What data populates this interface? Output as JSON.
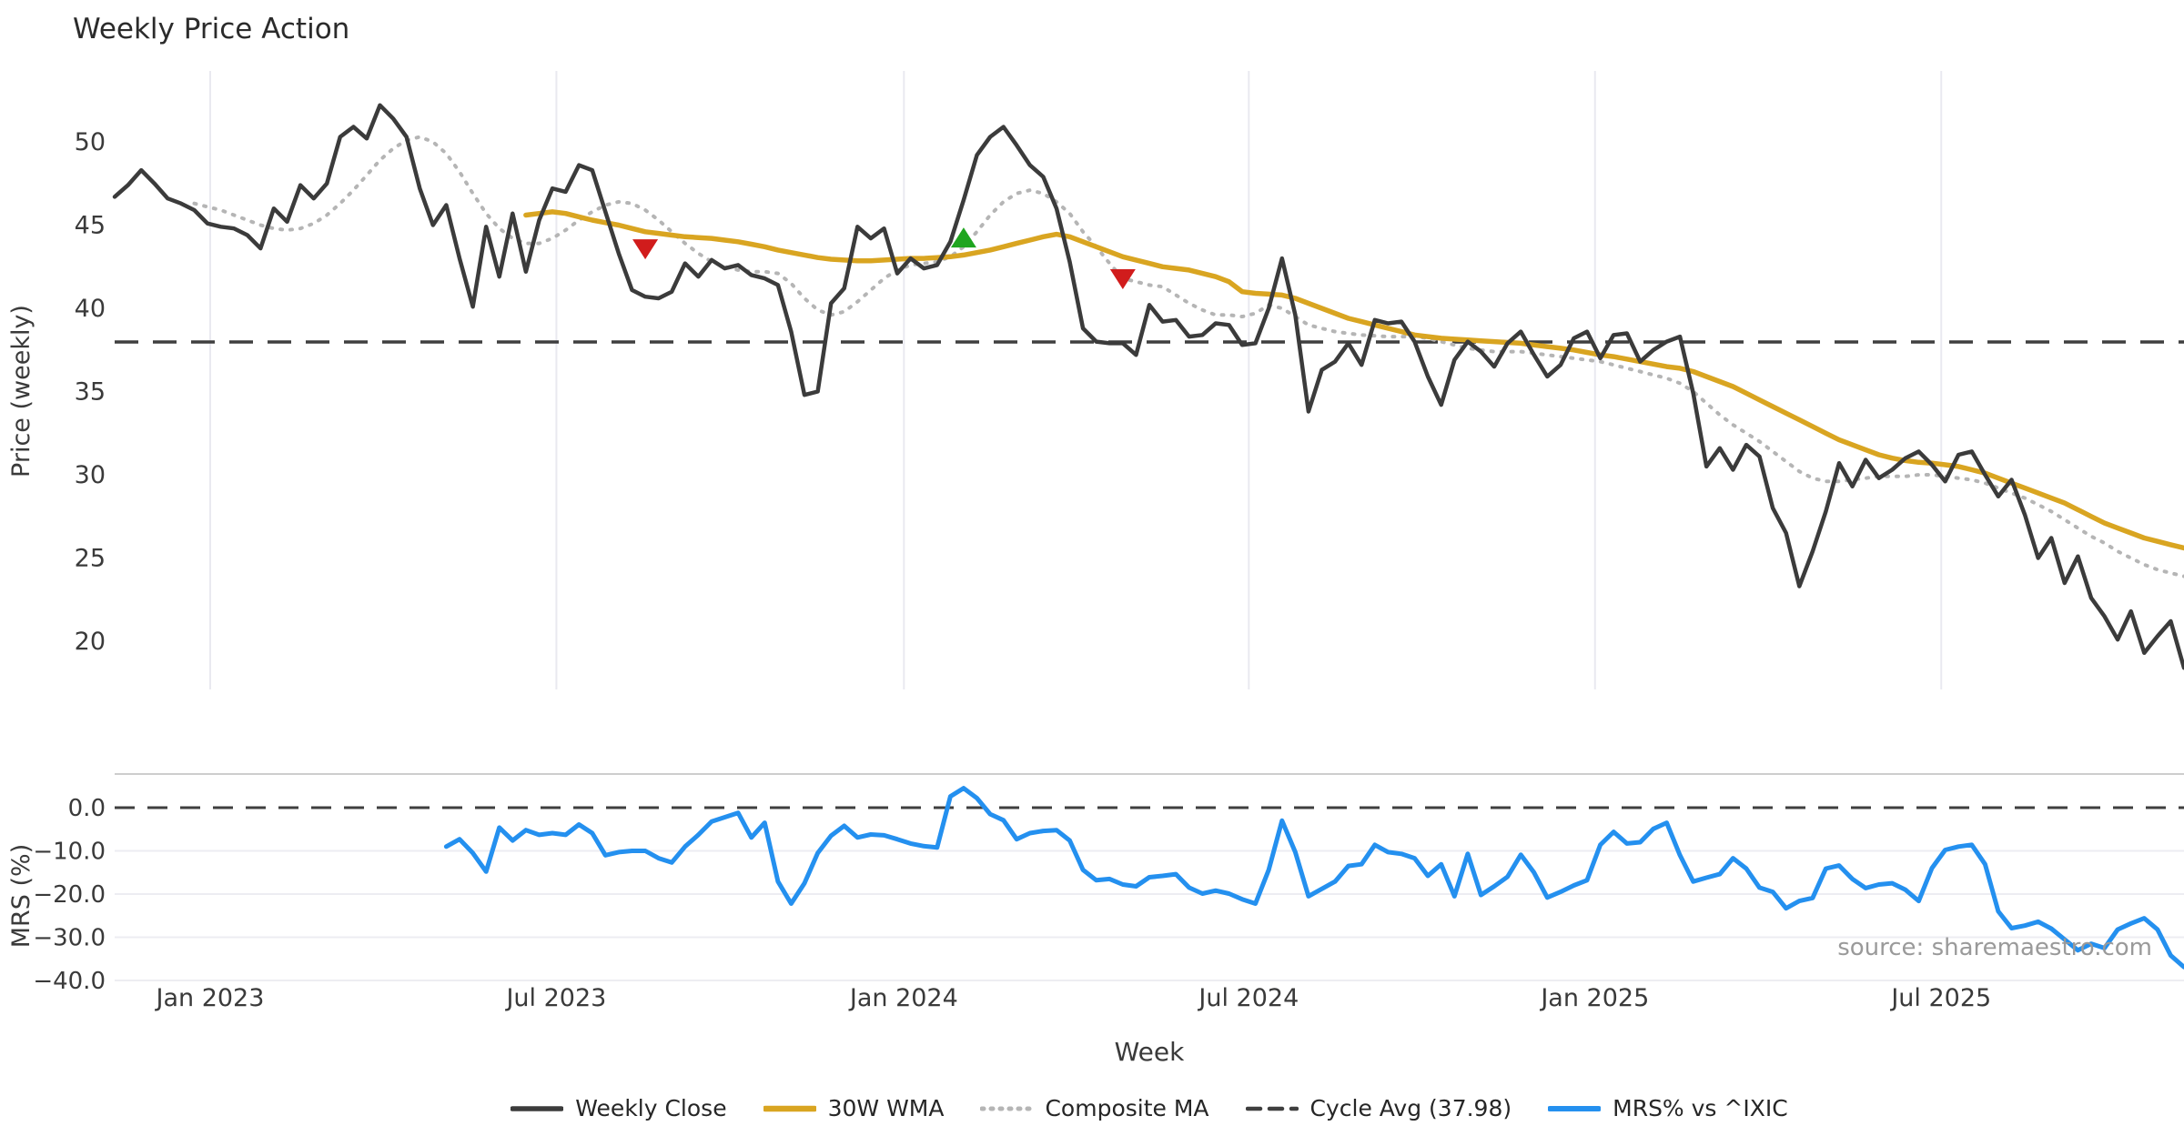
{
  "title": "Weekly Price Action",
  "source": "source: sharemaestro.com",
  "chart_data": {
    "type": "line",
    "panels": [
      "price",
      "mrs"
    ],
    "x_axis": {
      "label": "Week",
      "ticks": [
        {
          "week": 7.2,
          "label": "Jan 2023"
        },
        {
          "week": 33.3,
          "label": "Jul 2023"
        },
        {
          "week": 59.5,
          "label": "Jan 2024"
        },
        {
          "week": 85.5,
          "label": "Jul 2024"
        },
        {
          "week": 111.6,
          "label": "Jan 2025"
        },
        {
          "week": 137.7,
          "label": "Jul 2025"
        }
      ],
      "weeks_total": 157
    },
    "main_panel": {
      "ylabel": "Price (weekly)",
      "yticks": [
        50,
        45,
        40,
        35,
        30,
        25,
        20
      ],
      "ylim": [
        17.0,
        54.4
      ],
      "cycle_avg": 37.98,
      "grid": "vertical-only"
    },
    "mrs_panel": {
      "ylabel": "MRS (%)",
      "yticks": [
        {
          "label": "0.0",
          "value": 0
        },
        {
          "label": "−10.0",
          "value": -10
        },
        {
          "label": "−20.0",
          "value": -20
        },
        {
          "label": "−30.0",
          "value": -30
        },
        {
          "label": "−40.0",
          "value": -40
        }
      ],
      "ylim": [
        -41.5,
        7.8
      ],
      "zero_line": 0
    },
    "series": {
      "weekly_close": {
        "name": "Weekly Close",
        "color": "#3b3b3b",
        "width": 4.5,
        "style": "solid",
        "start_week": 0,
        "values": [
          46.7,
          47.4,
          48.3,
          47.5,
          46.6,
          46.3,
          45.9,
          45.1,
          44.9,
          44.8,
          44.4,
          43.6,
          46.0,
          45.2,
          47.4,
          46.6,
          47.5,
          50.3,
          50.9,
          50.2,
          52.2,
          51.4,
          50.3,
          47.2,
          45.0,
          46.2,
          43.0,
          40.1,
          44.9,
          41.9,
          45.7,
          42.2,
          45.3,
          47.2,
          47.0,
          48.6,
          48.3,
          45.8,
          43.3,
          41.1,
          40.7,
          40.6,
          41.0,
          42.7,
          41.9,
          42.9,
          42.4,
          42.6,
          42.0,
          41.8,
          41.4,
          38.6,
          34.8,
          35.0,
          40.3,
          41.2,
          44.9,
          44.2,
          44.8,
          42.1,
          43.0,
          42.4,
          42.6,
          44.0,
          46.5,
          49.2,
          50.3,
          50.9,
          49.8,
          48.6,
          47.9,
          46.0,
          42.8,
          38.8,
          38.0,
          37.9,
          37.9,
          37.2,
          40.2,
          39.2,
          39.3,
          38.3,
          38.4,
          39.1,
          39.0,
          37.8,
          37.9,
          40.0,
          43.0,
          39.6,
          33.8,
          36.3,
          36.8,
          37.9,
          36.6,
          39.3,
          39.1,
          39.2,
          38.0,
          35.9,
          34.2,
          36.9,
          38.0,
          37.4,
          36.5,
          37.9,
          38.6,
          37.2,
          35.9,
          36.6,
          38.2,
          38.6,
          37.0,
          38.4,
          38.5,
          36.8,
          37.5,
          38.0,
          38.3,
          34.9,
          30.5,
          31.6,
          30.3,
          31.8,
          31.1,
          28.0,
          26.5,
          23.3,
          25.4,
          27.8,
          30.7,
          29.3,
          30.9,
          29.8,
          30.3,
          31.0,
          31.4,
          30.6,
          29.6,
          31.2,
          31.4,
          30.0,
          28.7,
          29.7,
          27.6,
          25.0,
          26.2,
          23.5,
          25.1,
          22.6,
          21.5,
          20.1,
          21.8,
          19.3,
          20.3,
          21.2,
          18.4
        ]
      },
      "wma_30w": {
        "name": "30W WMA",
        "color": "#d9a521",
        "width": 5.5,
        "style": "solid",
        "start_week": 31,
        "values": [
          45.6,
          45.7,
          45.8,
          45.7,
          45.5,
          45.3,
          45.15,
          45.0,
          44.8,
          44.6,
          44.5,
          44.4,
          44.3,
          44.25,
          44.2,
          44.1,
          44.0,
          43.85,
          43.7,
          43.5,
          43.35,
          43.2,
          43.05,
          42.95,
          42.9,
          42.85,
          42.85,
          42.9,
          42.95,
          43.0,
          43.0,
          43.05,
          43.1,
          43.2,
          43.35,
          43.5,
          43.7,
          43.9,
          44.1,
          44.3,
          44.45,
          44.3,
          44.0,
          43.7,
          43.4,
          43.1,
          42.9,
          42.7,
          42.5,
          42.4,
          42.3,
          42.1,
          41.9,
          41.6,
          41.0,
          40.9,
          40.85,
          40.8,
          40.6,
          40.3,
          40.0,
          39.7,
          39.4,
          39.2,
          39.0,
          38.8,
          38.6,
          38.4,
          38.3,
          38.2,
          38.15,
          38.1,
          38.05,
          38.0,
          37.95,
          37.9,
          37.8,
          37.7,
          37.6,
          37.5,
          37.35,
          37.2,
          37.1,
          36.95,
          36.8,
          36.65,
          36.5,
          36.4,
          36.2,
          35.9,
          35.6,
          35.3,
          34.9,
          34.5,
          34.1,
          33.7,
          33.3,
          32.9,
          32.5,
          32.1,
          31.8,
          31.5,
          31.2,
          31.0,
          30.85,
          30.75,
          30.7,
          30.6,
          30.5,
          30.3,
          30.1,
          29.8,
          29.5,
          29.2,
          28.9,
          28.6,
          28.3,
          27.9,
          27.5,
          27.1,
          26.8,
          26.5,
          26.2,
          26.0,
          25.8,
          25.6
        ]
      },
      "composite_ma": {
        "name": "Composite MA",
        "color": "#b5b5b5",
        "width": 4,
        "style": "dotted",
        "start_week": 6,
        "values": [
          46.3,
          46.1,
          45.9,
          45.6,
          45.3,
          45.0,
          44.8,
          44.7,
          44.8,
          45.1,
          45.6,
          46.3,
          47.1,
          48.0,
          48.9,
          49.6,
          50.1,
          50.3,
          50.0,
          49.3,
          48.2,
          46.9,
          45.7,
          44.8,
          44.2,
          43.9,
          43.9,
          44.2,
          44.7,
          45.3,
          45.8,
          46.2,
          46.4,
          46.3,
          45.9,
          45.3,
          44.6,
          43.9,
          43.3,
          42.8,
          42.5,
          42.3,
          42.2,
          42.2,
          42.1,
          41.5,
          40.6,
          39.9,
          39.6,
          39.8,
          40.4,
          41.1,
          41.8,
          42.3,
          42.6,
          42.7,
          42.8,
          43.1,
          43.7,
          44.6,
          45.6,
          46.4,
          46.9,
          47.1,
          46.9,
          46.4,
          45.7,
          44.6,
          43.7,
          42.7,
          41.8,
          41.6,
          41.4,
          41.3,
          40.8,
          40.3,
          39.9,
          39.6,
          39.6,
          39.5,
          39.7,
          40.2,
          40.0,
          39.5,
          39.0,
          38.8,
          38.6,
          38.5,
          38.4,
          38.35,
          38.3,
          38.3,
          38.3,
          38.2,
          38.0,
          37.8,
          37.6,
          37.5,
          37.4,
          37.4,
          37.4,
          37.3,
          37.2,
          37.1,
          37.0,
          36.9,
          36.8,
          36.6,
          36.4,
          36.2,
          36.0,
          35.8,
          35.5,
          35.0,
          34.3,
          33.6,
          33.0,
          32.5,
          32.0,
          31.4,
          30.8,
          30.2,
          29.8,
          29.6,
          29.6,
          29.7,
          29.8,
          29.9,
          29.9,
          29.9,
          30.0,
          30.0,
          29.9,
          29.8,
          29.7,
          29.5,
          29.2,
          28.9,
          28.6,
          28.2,
          27.8,
          27.3,
          26.8,
          26.3,
          25.9,
          25.4,
          25.0,
          24.6,
          24.3,
          24.1,
          23.9
        ]
      },
      "mrs_vs_ixic": {
        "name": "MRS% vs ^IXIC",
        "color": "#2490ef",
        "width": 5,
        "style": "solid",
        "start_week": 25,
        "values": [
          -9.0,
          -7.3,
          -10.5,
          -14.8,
          -4.6,
          -7.6,
          -5.2,
          -6.3,
          -5.9,
          -6.3,
          -3.9,
          -5.9,
          -11.0,
          -10.3,
          -10.0,
          -10.0,
          -11.7,
          -12.7,
          -9.0,
          -6.3,
          -3.2,
          -2.2,
          -1.2,
          -6.9,
          -3.5,
          -17.1,
          -22.2,
          -17.5,
          -10.5,
          -6.5,
          -4.2,
          -6.9,
          -6.2,
          -6.4,
          -7.3,
          -8.3,
          -8.9,
          -9.2,
          2.6,
          4.5,
          2.2,
          -1.5,
          -2.9,
          -7.3,
          -5.9,
          -5.4,
          -5.2,
          -7.6,
          -14.4,
          -16.8,
          -16.5,
          -17.8,
          -18.2,
          -16.1,
          -15.8,
          -15.4,
          -18.5,
          -19.9,
          -19.2,
          -19.9,
          -21.2,
          -22.2,
          -14.4,
          -3.0,
          -10.3,
          -20.5,
          -18.8,
          -17.1,
          -13.5,
          -13.1,
          -8.6,
          -10.3,
          -10.7,
          -11.7,
          -15.8,
          -13.1,
          -20.5,
          -10.7,
          -20.2,
          -18.2,
          -16.0,
          -10.9,
          -15.0,
          -20.8,
          -19.5,
          -18.0,
          -16.8,
          -8.6,
          -5.6,
          -8.3,
          -8.0,
          -4.9,
          -3.5,
          -11.0,
          -17.1,
          -16.2,
          -15.4,
          -11.7,
          -14.1,
          -18.5,
          -19.5,
          -23.3,
          -21.6,
          -20.9,
          -14.1,
          -13.4,
          -16.5,
          -18.6,
          -17.8,
          -17.5,
          -19.0,
          -21.6,
          -14.0,
          -9.8,
          -9.0,
          -8.6,
          -13.1,
          -24.0,
          -27.9,
          -27.3,
          -26.4,
          -28.0,
          -30.5,
          -33.0,
          -31.5,
          -32.5,
          -28.2,
          -26.8,
          -25.6,
          -28.2,
          -34.2,
          -36.9
        ]
      }
    },
    "markers": [
      {
        "week": 40,
        "value": 43.6,
        "type": "sell",
        "color": "#d11c1c",
        "shape": "triangle-down"
      },
      {
        "week": 64,
        "value": 44.2,
        "type": "buy",
        "color": "#1fa51f",
        "shape": "triangle-up"
      },
      {
        "week": 76,
        "value": 41.8,
        "type": "sell",
        "color": "#d11c1c",
        "shape": "triangle-down"
      }
    ],
    "legend": [
      {
        "label": "Weekly Close",
        "color": "#3b3b3b",
        "width": 4.5,
        "style": "solid"
      },
      {
        "label": "30W WMA",
        "color": "#d9a521",
        "width": 5.5,
        "style": "solid"
      },
      {
        "label": "Composite MA",
        "color": "#b5b5b5",
        "width": 4,
        "style": "dotted"
      },
      {
        "label": "Cycle Avg (37.98)",
        "color": "#3f3f3f",
        "width": 3.5,
        "style": "dashed"
      },
      {
        "label": "MRS% vs ^IXIC",
        "color": "#2490ef",
        "width": 5,
        "style": "solid"
      }
    ],
    "style_colors": {
      "grid_vertical": "#e9e9f0",
      "grid_horizontal": "#ededf2",
      "panel_border": "#cdcdcd",
      "dashed_reference": "#3f3f3f"
    }
  }
}
